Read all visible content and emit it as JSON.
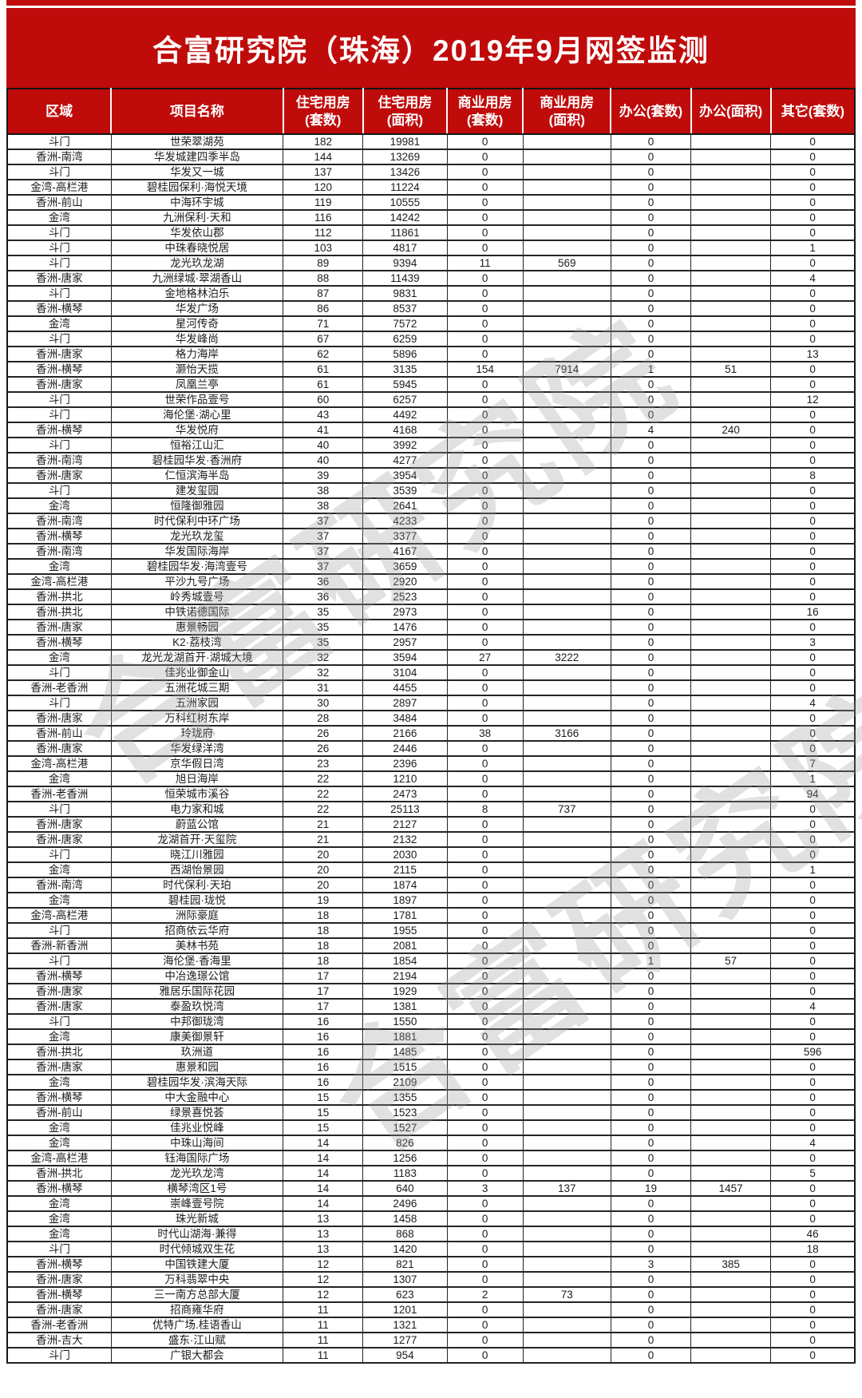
{
  "title": "合富研究院（珠海）2019年9月网签监测",
  "colors": {
    "accent_red": "#c00b0b",
    "watermark_gray": "#9e9e9e",
    "cell_text": "#1c1c1c"
  },
  "watermark": {
    "text": "合富研究院"
  },
  "table": {
    "columns": [
      {
        "label": "区域"
      },
      {
        "label": "项目名称"
      },
      {
        "label": "住宅用房",
        "sub": "(套数)"
      },
      {
        "label": "住宅用房",
        "sub": "(面积)"
      },
      {
        "label": "商业用房",
        "sub": "(套数)"
      },
      {
        "label": "商业用房",
        "sub": "(面积)"
      },
      {
        "label": "办公(套数)"
      },
      {
        "label": "办公(面积)"
      },
      {
        "label": "其它(套数)"
      }
    ],
    "cell_names": [
      "region",
      "project-name",
      "residential-units",
      "residential-area",
      "commercial-units",
      "commercial-area",
      "office-units",
      "office-area",
      "other-units"
    ],
    "rows": [
      [
        "斗门",
        "世荣翠湖苑",
        "182",
        "19981",
        "0",
        "",
        "0",
        "",
        "0"
      ],
      [
        "香洲-南湾",
        "华发城建四季半岛",
        "144",
        "13269",
        "0",
        "",
        "0",
        "",
        "0"
      ],
      [
        "斗门",
        "华发又一城",
        "137",
        "13426",
        "0",
        "",
        "0",
        "",
        "0"
      ],
      [
        "金湾-高栏港",
        "碧桂园保利·海悦天境",
        "120",
        "11224",
        "0",
        "",
        "0",
        "",
        "0"
      ],
      [
        "香洲-前山",
        "中海环宇城",
        "119",
        "10555",
        "0",
        "",
        "0",
        "",
        "0"
      ],
      [
        "金湾",
        "九洲保利·天和",
        "116",
        "14242",
        "0",
        "",
        "0",
        "",
        "0"
      ],
      [
        "斗门",
        "华发依山郡",
        "112",
        "11861",
        "0",
        "",
        "0",
        "",
        "0"
      ],
      [
        "斗门",
        "中珠春晓悦居",
        "103",
        "4817",
        "0",
        "",
        "0",
        "",
        "1"
      ],
      [
        "斗门",
        "龙光玖龙湖",
        "89",
        "9394",
        "11",
        "569",
        "0",
        "",
        "0"
      ],
      [
        "香洲-唐家",
        "九洲绿城·翠湖香山",
        "88",
        "11439",
        "0",
        "",
        "0",
        "",
        "4"
      ],
      [
        "斗门",
        "金地格林泊乐",
        "87",
        "9831",
        "0",
        "",
        "0",
        "",
        "0"
      ],
      [
        "香洲-横琴",
        "华发广场",
        "86",
        "8537",
        "0",
        "",
        "0",
        "",
        "0"
      ],
      [
        "金湾",
        "星河传奇",
        "71",
        "7572",
        "0",
        "",
        "0",
        "",
        "0"
      ],
      [
        "斗门",
        "华发峰尚",
        "67",
        "6259",
        "0",
        "",
        "0",
        "",
        "0"
      ],
      [
        "香洲-唐家",
        "格力海岸",
        "62",
        "5896",
        "0",
        "",
        "0",
        "",
        "13"
      ],
      [
        "香洲-横琴",
        "灏怡天揽",
        "61",
        "3135",
        "154",
        "7914",
        "1",
        "51",
        "0"
      ],
      [
        "香洲-唐家",
        "凤凰兰亭",
        "61",
        "5945",
        "0",
        "",
        "0",
        "",
        "0"
      ],
      [
        "斗门",
        "世荣作品壹号",
        "60",
        "6257",
        "0",
        "",
        "0",
        "",
        "12"
      ],
      [
        "斗门",
        "海伦堡·湖心里",
        "43",
        "4492",
        "0",
        "",
        "0",
        "",
        "0"
      ],
      [
        "香洲-横琴",
        "华发悦府",
        "41",
        "4168",
        "0",
        "",
        "4",
        "240",
        "0"
      ],
      [
        "斗门",
        "恒裕江山汇",
        "40",
        "3992",
        "0",
        "",
        "0",
        "",
        "0"
      ],
      [
        "香洲-南湾",
        "碧桂园华发·香洲府",
        "40",
        "4277",
        "0",
        "",
        "0",
        "",
        "0"
      ],
      [
        "香洲-唐家",
        "仁恒滨海半岛",
        "39",
        "3954",
        "0",
        "",
        "0",
        "",
        "8"
      ],
      [
        "斗门",
        "建发玺园",
        "38",
        "3539",
        "0",
        "",
        "0",
        "",
        "0"
      ],
      [
        "金湾",
        "恒隆御雅园",
        "38",
        "2641",
        "0",
        "",
        "0",
        "",
        "0"
      ],
      [
        "香洲-南湾",
        "时代保利中环广场",
        "37",
        "4233",
        "0",
        "",
        "0",
        "",
        "0"
      ],
      [
        "香洲-横琴",
        "龙光玖龙玺",
        "37",
        "3377",
        "0",
        "",
        "0",
        "",
        "0"
      ],
      [
        "香洲-南湾",
        "华发国际海岸",
        "37",
        "4167",
        "0",
        "",
        "0",
        "",
        "0"
      ],
      [
        "金湾",
        "碧桂园华发·海湾壹号",
        "37",
        "3659",
        "0",
        "",
        "0",
        "",
        "0"
      ],
      [
        "金湾-高栏港",
        "平沙九号广场",
        "36",
        "2920",
        "0",
        "",
        "0",
        "",
        "0"
      ],
      [
        "香洲-拱北",
        "岭秀城壹号",
        "36",
        "2523",
        "0",
        "",
        "0",
        "",
        "0"
      ],
      [
        "香洲-拱北",
        "中铁诺德国际",
        "35",
        "2973",
        "0",
        "",
        "0",
        "",
        "16"
      ],
      [
        "香洲-唐家",
        "惠景畅园",
        "35",
        "1476",
        "0",
        "",
        "0",
        "",
        "0"
      ],
      [
        "香洲-横琴",
        "K2·荔枝湾",
        "35",
        "2957",
        "0",
        "",
        "0",
        "",
        "3"
      ],
      [
        "金湾",
        "龙光龙湖首开·湖城大境",
        "32",
        "3594",
        "27",
        "3222",
        "0",
        "",
        "0"
      ],
      [
        "斗门",
        "佳兆业御金山",
        "32",
        "3104",
        "0",
        "",
        "0",
        "",
        "0"
      ],
      [
        "香洲-老香洲",
        "五洲花城三期",
        "31",
        "4455",
        "0",
        "",
        "0",
        "",
        "0"
      ],
      [
        "斗门",
        "五洲家园",
        "30",
        "2897",
        "0",
        "",
        "0",
        "",
        "4"
      ],
      [
        "香洲-唐家",
        "万科红树东岸",
        "28",
        "3484",
        "0",
        "",
        "0",
        "",
        "0"
      ],
      [
        "香洲-前山",
        "玲珑府",
        "26",
        "2166",
        "38",
        "3166",
        "0",
        "",
        "0"
      ],
      [
        "香洲-唐家",
        "华发绿洋湾",
        "26",
        "2446",
        "0",
        "",
        "0",
        "",
        "0"
      ],
      [
        "金湾-高栏港",
        "京华假日湾",
        "23",
        "2396",
        "0",
        "",
        "0",
        "",
        "7"
      ],
      [
        "金湾",
        "旭日海岸",
        "22",
        "1210",
        "0",
        "",
        "0",
        "",
        "1"
      ],
      [
        "香洲-老香洲",
        "恒荣城市溪谷",
        "22",
        "2473",
        "0",
        "",
        "0",
        "",
        "94"
      ],
      [
        "斗门",
        "电力家和城",
        "22",
        "25113",
        "8",
        "737",
        "0",
        "",
        "0"
      ],
      [
        "香洲-唐家",
        "蔚蓝公馆",
        "21",
        "2127",
        "0",
        "",
        "0",
        "",
        "0"
      ],
      [
        "香洲-唐家",
        "龙湖首开·天玺院",
        "21",
        "2132",
        "0",
        "",
        "0",
        "",
        "0"
      ],
      [
        "斗门",
        "晓江川雅园",
        "20",
        "2030",
        "0",
        "",
        "0",
        "",
        "0"
      ],
      [
        "金湾",
        "西湖怡景园",
        "20",
        "2115",
        "0",
        "",
        "0",
        "",
        "1"
      ],
      [
        "香洲-南湾",
        "时代保利·天珀",
        "20",
        "1874",
        "0",
        "",
        "0",
        "",
        "0"
      ],
      [
        "金湾",
        "碧桂园·珑悦",
        "19",
        "1897",
        "0",
        "",
        "0",
        "",
        "0"
      ],
      [
        "金湾-高栏港",
        "洲际豪庭",
        "18",
        "1781",
        "0",
        "",
        "0",
        "",
        "0"
      ],
      [
        "斗门",
        "招商依云华府",
        "18",
        "1955",
        "0",
        "",
        "0",
        "",
        "0"
      ],
      [
        "香洲-新香洲",
        "美林书苑",
        "18",
        "2081",
        "0",
        "",
        "0",
        "",
        "0"
      ],
      [
        "斗门",
        "海伦堡·香海里",
        "18",
        "1854",
        "0",
        "",
        "1",
        "57",
        "0"
      ],
      [
        "香洲-横琴",
        "中冶逸璟公馆",
        "17",
        "2194",
        "0",
        "",
        "0",
        "",
        "0"
      ],
      [
        "香洲-唐家",
        "雅居乐国际花园",
        "17",
        "1929",
        "0",
        "",
        "0",
        "",
        "0"
      ],
      [
        "香洲-唐家",
        "泰盈玖悦湾",
        "17",
        "1381",
        "0",
        "",
        "0",
        "",
        "4"
      ],
      [
        "斗门",
        "中邦御珑湾",
        "16",
        "1550",
        "0",
        "",
        "0",
        "",
        "0"
      ],
      [
        "金湾",
        "康美御景轩",
        "16",
        "1881",
        "0",
        "",
        "0",
        "",
        "0"
      ],
      [
        "香洲-拱北",
        "玖洲道",
        "16",
        "1485",
        "0",
        "",
        "0",
        "",
        "596"
      ],
      [
        "香洲-唐家",
        "惠景和园",
        "16",
        "1515",
        "0",
        "",
        "0",
        "",
        "0"
      ],
      [
        "金湾",
        "碧桂园华发·滨海天际",
        "16",
        "2109",
        "0",
        "",
        "0",
        "",
        "0"
      ],
      [
        "香洲-横琴",
        "中大金融中心",
        "15",
        "1355",
        "0",
        "",
        "0",
        "",
        "0"
      ],
      [
        "香洲-前山",
        "绿景喜悦荟",
        "15",
        "1523",
        "0",
        "",
        "0",
        "",
        "0"
      ],
      [
        "金湾",
        "佳兆业悦峰",
        "15",
        "1527",
        "0",
        "",
        "0",
        "",
        "0"
      ],
      [
        "金湾",
        "中珠山海间",
        "14",
        "826",
        "0",
        "",
        "0",
        "",
        "4"
      ],
      [
        "金湾-高栏港",
        "钰海国际广场",
        "14",
        "1256",
        "0",
        "",
        "0",
        "",
        "0"
      ],
      [
        "香洲-拱北",
        "龙光玖龙湾",
        "14",
        "1183",
        "0",
        "",
        "0",
        "",
        "5"
      ],
      [
        "香洲-横琴",
        "横琴湾区1号",
        "14",
        "640",
        "3",
        "137",
        "19",
        "1457",
        "0"
      ],
      [
        "金湾",
        "崇峰壹号院",
        "14",
        "2496",
        "0",
        "",
        "0",
        "",
        "0"
      ],
      [
        "金湾",
        "珠光新城",
        "13",
        "1458",
        "0",
        "",
        "0",
        "",
        "0"
      ],
      [
        "金湾",
        "时代山湖海·兼得",
        "13",
        "868",
        "0",
        "",
        "0",
        "",
        "46"
      ],
      [
        "斗门",
        "时代倾城双生花",
        "13",
        "1420",
        "0",
        "",
        "0",
        "",
        "18"
      ],
      [
        "香洲-横琴",
        "中国铁建大厦",
        "12",
        "821",
        "0",
        "",
        "3",
        "385",
        "0"
      ],
      [
        "香洲-唐家",
        "万科翡翠中央",
        "12",
        "1307",
        "0",
        "",
        "0",
        "",
        "0"
      ],
      [
        "香洲-横琴",
        "三一南方总部大厦",
        "12",
        "623",
        "2",
        "73",
        "0",
        "",
        "0"
      ],
      [
        "香洲-唐家",
        "招商雍华府",
        "11",
        "1201",
        "0",
        "",
        "0",
        "",
        "0"
      ],
      [
        "香洲-老香洲",
        "优特广场.桂语香山",
        "11",
        "1321",
        "0",
        "",
        "0",
        "",
        "0"
      ],
      [
        "香洲-吉大",
        "盛东·江山赋",
        "11",
        "1277",
        "0",
        "",
        "0",
        "",
        "0"
      ],
      [
        "斗门",
        "广银大都会",
        "11",
        "954",
        "0",
        "",
        "0",
        "",
        "0"
      ]
    ]
  }
}
